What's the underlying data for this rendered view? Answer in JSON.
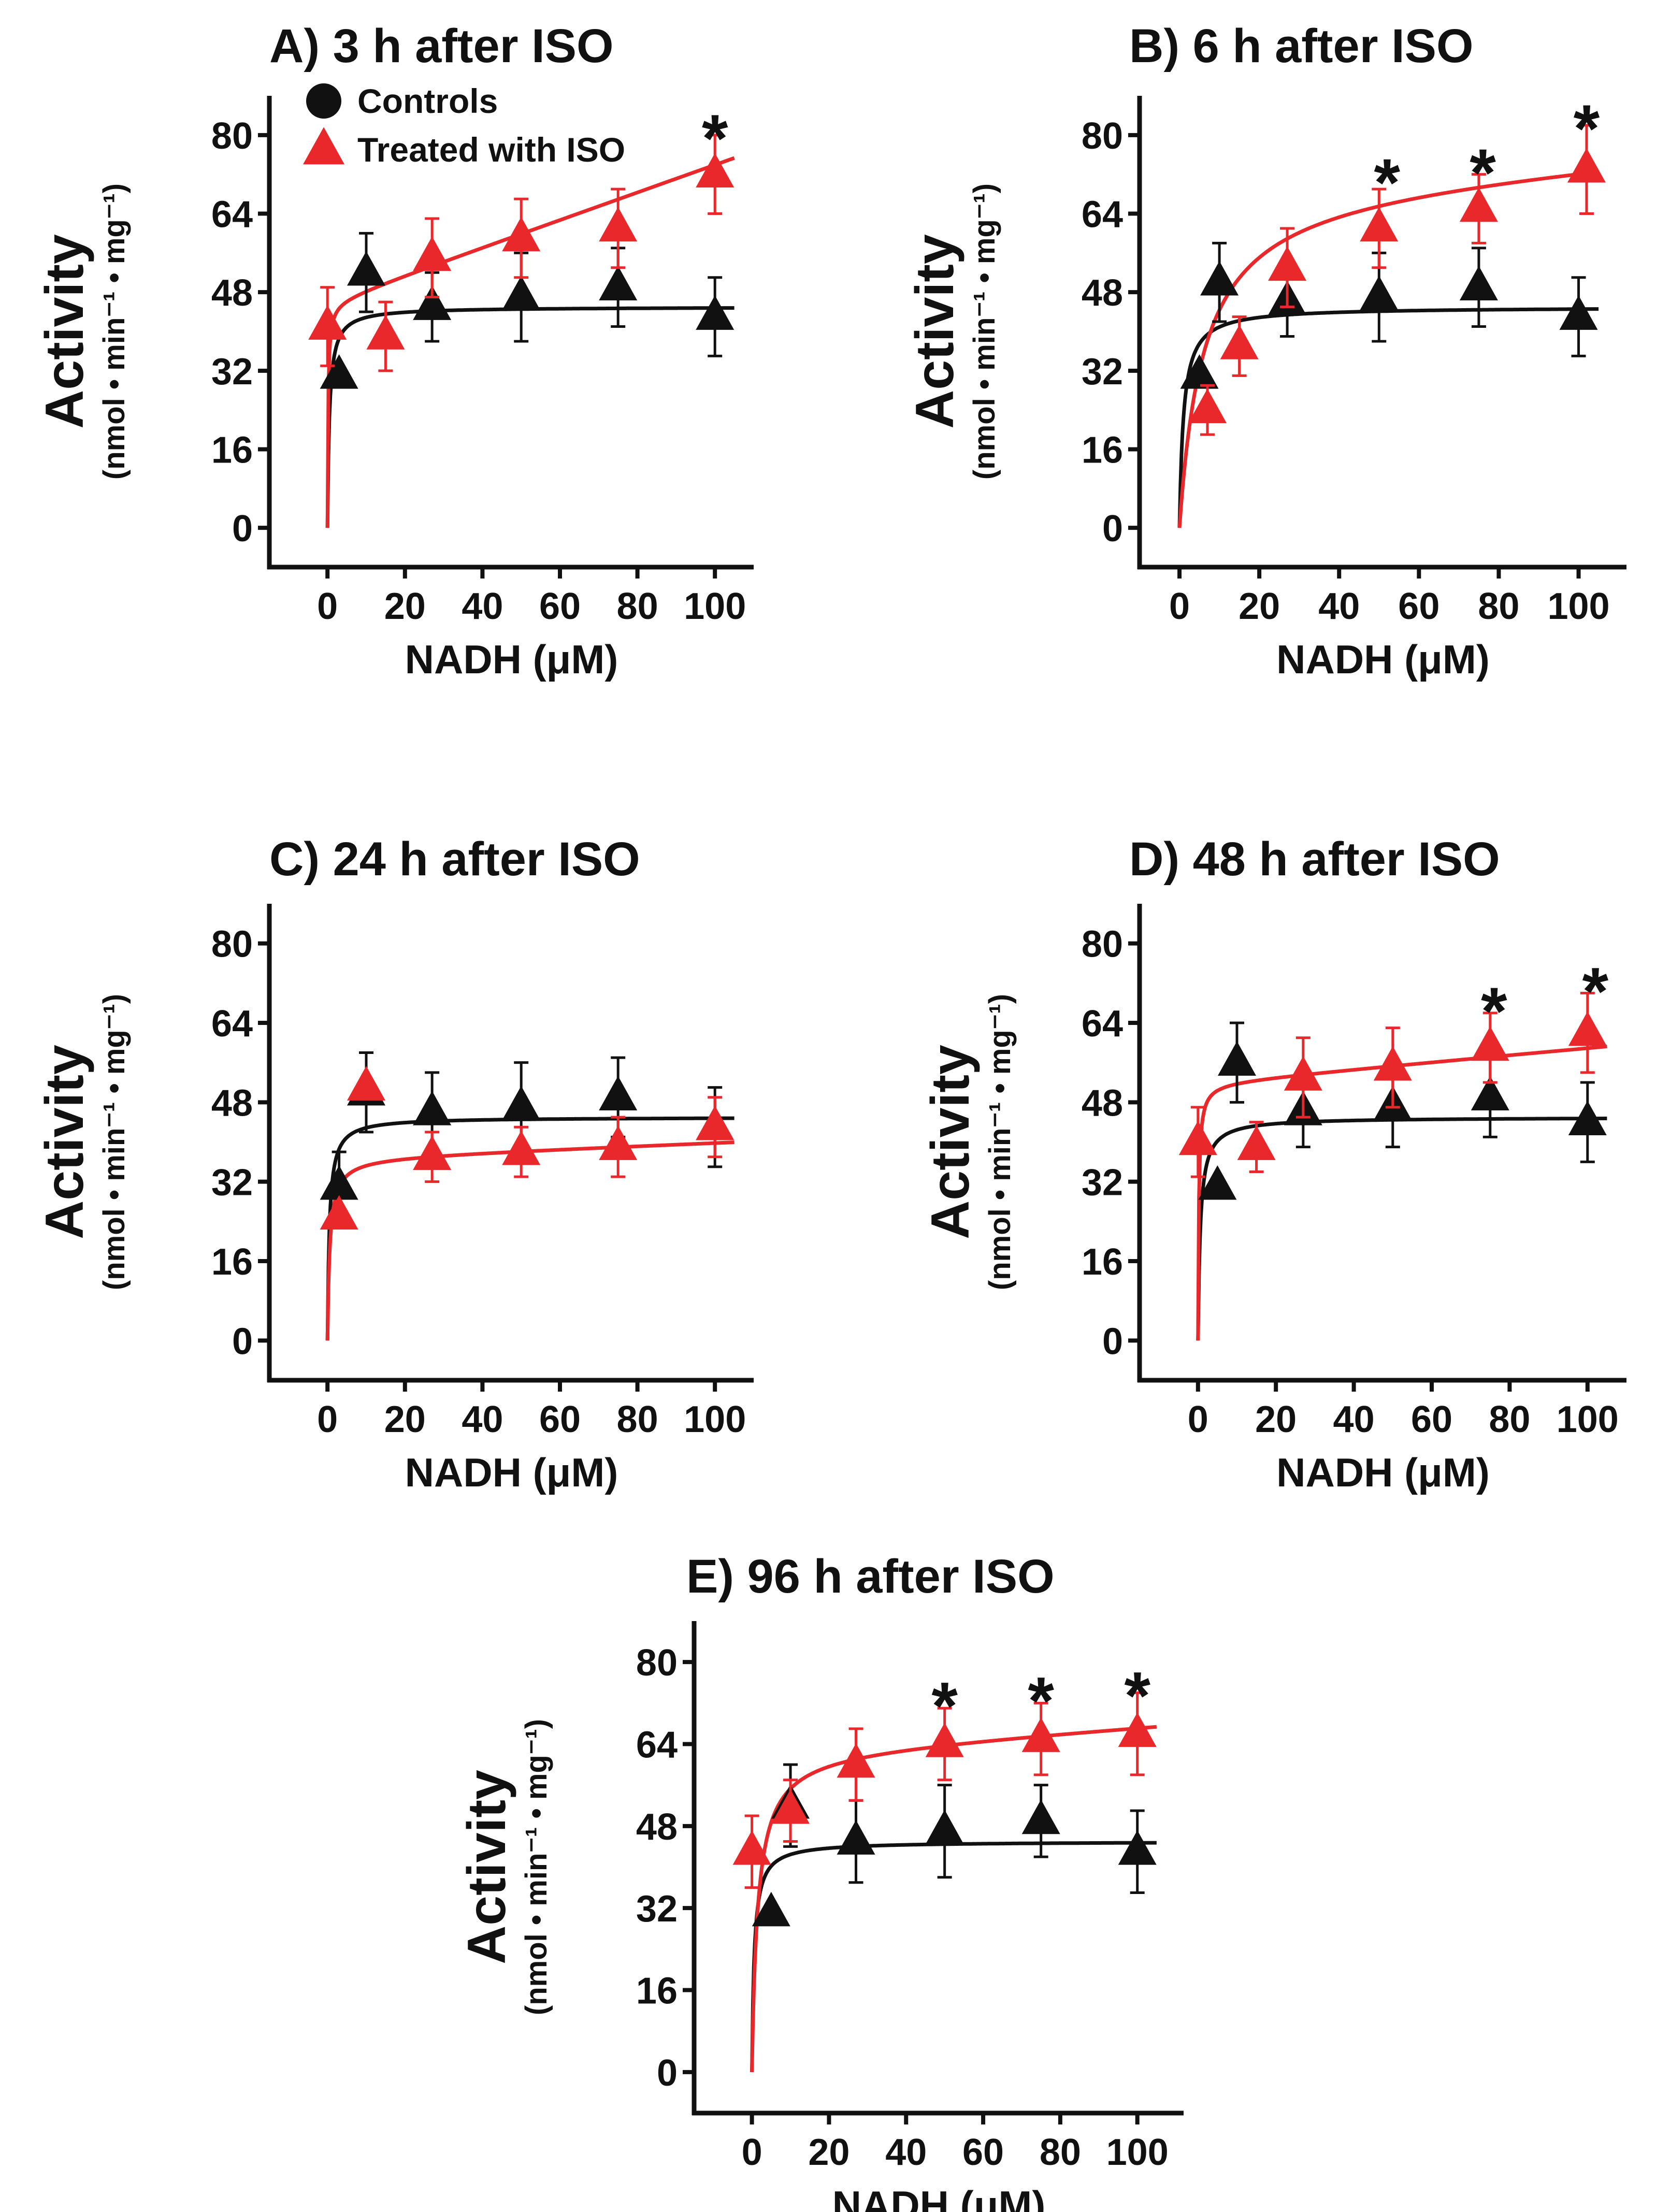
{
  "colors": {
    "controls": "#111111",
    "iso": "#e8282b"
  },
  "legend": {
    "controls": "Controls",
    "iso": "Treated with ISO"
  },
  "axes": {
    "xlabel": "NADH (μM)",
    "ylabel": "Activity",
    "ylabel_unit": "(nmol • min⁻¹ • mg⁻¹)",
    "xticks": [
      "0",
      "20",
      "40",
      "60",
      "80",
      "100"
    ],
    "yticks": [
      "0",
      "16",
      "32",
      "48",
      "64",
      "80"
    ]
  },
  "chart_data": [
    {
      "type": "scatter",
      "title": "A) 3 h after ISO",
      "xlim": [
        -15,
        110
      ],
      "ylim": [
        -8,
        88
      ],
      "series": [
        {
          "name": "Controls",
          "marker": "triangle",
          "color": "#111111",
          "x": [
            3,
            10,
            27,
            50,
            75,
            100
          ],
          "y": [
            31,
            52,
            45,
            47,
            49,
            43
          ],
          "err": [
            0,
            8,
            7,
            9,
            8,
            8
          ],
          "fit": {
            "vmax": 45,
            "km": 0.5,
            "slope": 0
          }
        },
        {
          "name": "Treated with ISO",
          "marker": "triangle",
          "color": "#e8282b",
          "x": [
            0,
            15,
            27,
            50,
            75,
            100
          ],
          "y": [
            41,
            39,
            55,
            59,
            61,
            72
          ],
          "err": [
            8,
            7,
            8,
            8,
            8,
            8
          ],
          "fit": {
            "vmax": 46,
            "km": 0.15,
            "slope": 0.28
          }
        }
      ],
      "annotations": [
        {
          "text": "*",
          "x": 100,
          "y": 82
        }
      ]
    },
    {
      "type": "scatter",
      "title": "B) 6 h after ISO",
      "xlim": [
        -10,
        112
      ],
      "ylim": [
        -8,
        88
      ],
      "series": [
        {
          "name": "Controls",
          "marker": "triangle",
          "color": "#111111",
          "x": [
            5,
            10,
            27,
            50,
            75,
            100
          ],
          "y": [
            31,
            50,
            46,
            47,
            49,
            43
          ],
          "err": [
            0,
            8,
            7,
            9,
            8,
            8
          ],
          "fit": {
            "vmax": 45,
            "km": 1.0,
            "slope": 0
          }
        },
        {
          "name": "Treated with ISO",
          "marker": "triangle",
          "color": "#e8282b",
          "x": [
            7,
            15,
            27,
            50,
            75,
            102
          ],
          "y": [
            24,
            37,
            53,
            61,
            65,
            73
          ],
          "err": [
            5,
            6,
            8,
            8,
            7,
            9
          ],
          "fit": {
            "vmax": 70,
            "km": 6,
            "slope": 0.06
          }
        }
      ],
      "annotations": [
        {
          "text": "*",
          "x": 52,
          "y": 73
        },
        {
          "text": "*",
          "x": 76,
          "y": 75
        },
        {
          "text": "*",
          "x": 102,
          "y": 84
        }
      ]
    },
    {
      "type": "scatter",
      "title": "C) 24 h after ISO",
      "xlim": [
        -15,
        110
      ],
      "ylim": [
        -8,
        88
      ],
      "series": [
        {
          "name": "Controls",
          "marker": "triangle",
          "color": "#111111",
          "x": [
            3,
            10,
            27,
            50,
            75,
            100
          ],
          "y": [
            31,
            50,
            46,
            47,
            49,
            43
          ],
          "err": [
            7,
            8,
            8,
            9,
            8,
            8
          ],
          "fit": {
            "vmax": 45,
            "km": 0.5,
            "slope": 0
          }
        },
        {
          "name": "Treated with ISO",
          "marker": "triangle",
          "color": "#e8282b",
          "x": [
            3,
            10,
            27,
            50,
            75,
            100
          ],
          "y": [
            25,
            51,
            37,
            38,
            39,
            43
          ],
          "err": [
            0,
            0,
            5,
            5,
            6,
            6
          ],
          "fit": {
            "vmax": 37,
            "km": 0.6,
            "slope": 0.03
          }
        }
      ],
      "annotations": []
    },
    {
      "type": "scatter",
      "title": "D) 48 h after ISO",
      "xlim": [
        -15,
        110
      ],
      "ylim": [
        -8,
        88
      ],
      "series": [
        {
          "name": "Controls",
          "marker": "triangle",
          "color": "#111111",
          "x": [
            5,
            10,
            27,
            50,
            75,
            100
          ],
          "y": [
            31,
            56,
            46,
            47,
            49,
            44
          ],
          "err": [
            0,
            8,
            7,
            8,
            8,
            8
          ],
          "fit": {
            "vmax": 45,
            "km": 0.6,
            "slope": 0
          }
        },
        {
          "name": "Treated with ISO",
          "marker": "triangle",
          "color": "#e8282b",
          "x": [
            0,
            15,
            27,
            50,
            75,
            100
          ],
          "y": [
            40,
            39,
            53,
            55,
            59,
            62
          ],
          "err": [
            7,
            5,
            8,
            8,
            7,
            8
          ],
          "fit": {
            "vmax": 52,
            "km": 0.2,
            "slope": 0.07
          }
        }
      ],
      "annotations": [
        {
          "text": "*",
          "x": 76,
          "y": 69
        },
        {
          "text": "*",
          "x": 102,
          "y": 73
        }
      ]
    },
    {
      "type": "scatter",
      "title": "E) 96 h after ISO",
      "xlim": [
        -15,
        112
      ],
      "ylim": [
        -8,
        88
      ],
      "series": [
        {
          "name": "Controls",
          "marker": "triangle",
          "color": "#111111",
          "x": [
            5,
            10,
            27,
            50,
            75,
            100
          ],
          "y": [
            31,
            52,
            45,
            47,
            49,
            43
          ],
          "err": [
            0,
            8,
            8,
            9,
            7,
            8
          ],
          "fit": {
            "vmax": 45,
            "km": 0.6,
            "slope": 0
          }
        },
        {
          "name": "Treated with ISO",
          "marker": "triangle",
          "color": "#e8282b",
          "x": [
            0,
            10,
            27,
            50,
            75,
            100
          ],
          "y": [
            43,
            51,
            60,
            64,
            65,
            66
          ],
          "err": [
            7,
            6,
            7,
            7,
            7,
            8
          ],
          "fit": {
            "vmax": 63,
            "km": 1.5,
            "slope": 0.05
          }
        }
      ],
      "annotations": [
        {
          "text": "*",
          "x": 50,
          "y": 74
        },
        {
          "text": "*",
          "x": 75,
          "y": 75
        },
        {
          "text": "*",
          "x": 100,
          "y": 76
        }
      ]
    }
  ]
}
